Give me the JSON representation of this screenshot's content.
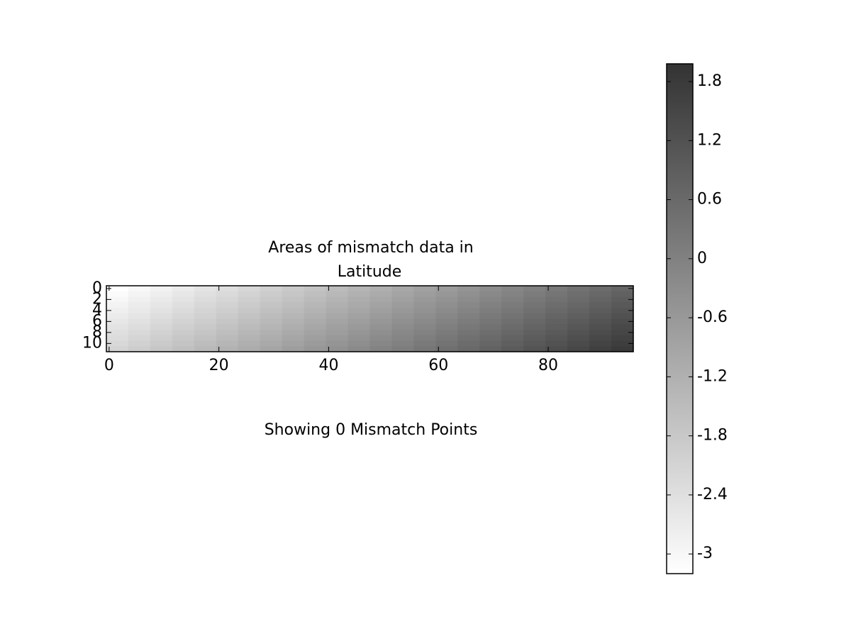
{
  "chart_data": {
    "type": "heatmap",
    "title": [
      "Areas of mismatch data in",
      "Latitude"
    ],
    "xlabel": "Showing 0 Mismatch Points",
    "xlim": [
      -0.5,
      95.5
    ],
    "ylim": [
      11.5,
      -0.5
    ],
    "xticks": [
      0,
      20,
      40,
      60,
      80
    ],
    "yticks": [
      0,
      2,
      4,
      6,
      8,
      10
    ],
    "colormap": [
      "#ffffff",
      "#333333"
    ],
    "clim": [
      -3.2,
      1.98
    ],
    "cticks": [
      1.8,
      1.2,
      0.6,
      0,
      -0.6,
      -1.2,
      -1.8,
      -2.4,
      -3
    ],
    "values": [
      [
        -3.2,
        -3.03,
        -2.86,
        -2.69,
        -2.52,
        -2.35,
        -2.18,
        -2.01,
        -1.84,
        -1.67,
        -1.5,
        -1.33,
        -1.16,
        -0.99,
        -0.82,
        -0.65,
        -0.48,
        -0.31,
        -0.14,
        0.03,
        0.2,
        0.37,
        0.54,
        0.71
      ],
      [
        -3.1,
        -2.93,
        -2.76,
        -2.59,
        -2.42,
        -2.25,
        -2.08,
        -1.91,
        -1.74,
        -1.57,
        -1.4,
        -1.23,
        -1.06,
        -0.89,
        -0.72,
        -0.55,
        -0.38,
        -0.21,
        -0.04,
        0.13,
        0.3,
        0.47,
        0.64,
        0.81
      ],
      [
        -3,
        -2.83,
        -2.66,
        -2.49,
        -2.32,
        -2.15,
        -1.98,
        -1.81,
        -1.64,
        -1.47,
        -1.3,
        -1.13,
        -0.96,
        -0.79,
        -0.62,
        -0.45,
        -0.28,
        -0.11,
        0.06,
        0.23,
        0.4,
        0.57,
        0.74,
        0.91
      ],
      [
        -2.9,
        -2.73,
        -2.56,
        -2.39,
        -2.22,
        -2.05,
        -1.88,
        -1.71,
        -1.54,
        -1.37,
        -1.2,
        -1.03,
        -0.86,
        -0.69,
        -0.52,
        -0.35,
        -0.18,
        -0.01,
        0.16,
        0.33,
        0.5,
        0.67,
        0.84,
        1.01
      ],
      [
        -2.8,
        -2.63,
        -2.46,
        -2.29,
        -2.12,
        -1.95,
        -1.78,
        -1.61,
        -1.44,
        -1.27,
        -1.1,
        -0.93,
        -0.76,
        -0.59,
        -0.42,
        -0.25,
        -0.08,
        0.09,
        0.26,
        0.43,
        0.6,
        0.77,
        0.94,
        1.11
      ],
      [
        -2.7,
        -2.53,
        -2.36,
        -2.19,
        -2.02,
        -1.85,
        -1.68,
        -1.51,
        -1.34,
        -1.17,
        -1,
        -0.83,
        -0.66,
        -0.49,
        -0.32,
        -0.15,
        0.02,
        0.19,
        0.36,
        0.53,
        0.7,
        0.87,
        1.04,
        1.21
      ],
      [
        -2.6,
        -2.43,
        -2.26,
        -2.09,
        -1.92,
        -1.75,
        -1.58,
        -1.41,
        -1.24,
        -1.07,
        -0.9,
        -0.73,
        -0.56,
        -0.39,
        -0.22,
        -0.05,
        0.12,
        0.29,
        0.46,
        0.63,
        0.8,
        0.97,
        1.14,
        1.31
      ],
      [
        -2.5,
        -2.33,
        -2.16,
        -1.99,
        -1.82,
        -1.65,
        -1.48,
        -1.31,
        -1.14,
        -0.97,
        -0.8,
        -0.63,
        -0.46,
        -0.29,
        -0.12,
        0.05,
        0.22,
        0.39,
        0.56,
        0.73,
        0.9,
        1.07,
        1.24,
        1.41
      ],
      [
        -2.4,
        -2.23,
        -2.06,
        -1.89,
        -1.72,
        -1.55,
        -1.38,
        -1.21,
        -1.04,
        -0.87,
        -0.7,
        -0.53,
        -0.36,
        -0.19,
        -0.02,
        0.15,
        0.32,
        0.49,
        0.66,
        0.83,
        1,
        1.17,
        1.34,
        1.51
      ],
      [
        -2.3,
        -2.13,
        -1.96,
        -1.79,
        -1.62,
        -1.45,
        -1.28,
        -1.11,
        -0.94,
        -0.77,
        -0.6,
        -0.43,
        -0.26,
        -0.09,
        0.08,
        0.25,
        0.42,
        0.59,
        0.76,
        0.93,
        1.1,
        1.27,
        1.44,
        1.61
      ],
      [
        -2.2,
        -2.03,
        -1.86,
        -1.69,
        -1.52,
        -1.35,
        -1.18,
        -1.01,
        -0.84,
        -0.67,
        -0.5,
        -0.33,
        -0.16,
        0.01,
        0.18,
        0.35,
        0.52,
        0.69,
        0.86,
        1.03,
        1.2,
        1.37,
        1.54,
        1.71
      ],
      [
        -2.1,
        -1.93,
        -1.76,
        -1.59,
        -1.42,
        -1.25,
        -1.08,
        -0.91,
        -0.74,
        -0.57,
        -0.4,
        -0.23,
        -0.06,
        0.11,
        0.28,
        0.45,
        0.62,
        0.79,
        0.96,
        1.13,
        1.3,
        1.47,
        1.64,
        1.81
      ]
    ]
  }
}
